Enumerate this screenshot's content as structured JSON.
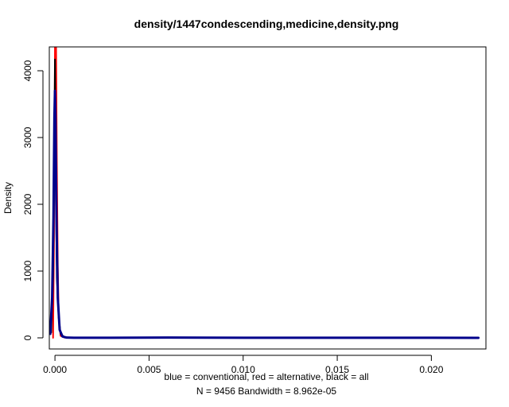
{
  "chart_data": {
    "type": "line",
    "title": "density/1447condescending,medicine,density.png",
    "xlabel": "blue = conventional, red = alternative, black = all",
    "xlabel2": "N = 9456   Bandwidth = 8.962e-05",
    "ylabel": "Density",
    "xlim": [
      -0.0003,
      0.0229
    ],
    "ylim": [
      0,
      4350
    ],
    "x_ticks": [
      0.0,
      0.005,
      0.01,
      0.015,
      0.02
    ],
    "x_tick_labels": [
      "0.000",
      "0.005",
      "0.010",
      "0.015",
      "0.020"
    ],
    "y_ticks": [
      0,
      1000,
      2000,
      3000,
      4000
    ],
    "y_tick_labels": [
      "0",
      "1000",
      "2000",
      "3000",
      "4000"
    ],
    "grid": false,
    "series": [
      {
        "color": "#ff0000",
        "x": [
          -0.0001,
          -5e-05,
          0.0,
          3e-05,
          6e-05,
          0.0001,
          0.00015,
          0.0002,
          0.0003,
          0.0005,
          0.0008,
          0.0015,
          0.0025,
          0.0035,
          0.0045
        ],
        "y": [
          0,
          1500,
          4350,
          4350,
          4350,
          2600,
          1100,
          300,
          30,
          5,
          2,
          1,
          3,
          1,
          0
        ]
      },
      {
        "color": "#000000",
        "x": [
          -0.0002,
          -0.0001,
          -5e-05,
          0.0,
          5e-05,
          0.0001,
          0.0002,
          0.0003,
          0.0005,
          0.001,
          0.003,
          0.006,
          0.01,
          0.015,
          0.02,
          0.0225
        ],
        "y": [
          80,
          900,
          2200,
          4170,
          2200,
          900,
          300,
          60,
          10,
          3,
          2,
          4,
          2,
          1,
          1,
          0
        ]
      },
      {
        "color": "#00008b",
        "x": [
          -0.00025,
          -0.00015,
          -8e-05,
          -3e-05,
          0.0,
          3e-05,
          8e-05,
          0.00015,
          0.00025,
          0.0004,
          0.0006,
          0.001,
          0.003,
          0.006,
          0.01,
          0.015,
          0.02,
          0.0225
        ],
        "y": [
          60,
          600,
          1800,
          3300,
          3700,
          3300,
          1800,
          600,
          120,
          20,
          5,
          2,
          1,
          5,
          2,
          1,
          1,
          0
        ]
      }
    ]
  }
}
